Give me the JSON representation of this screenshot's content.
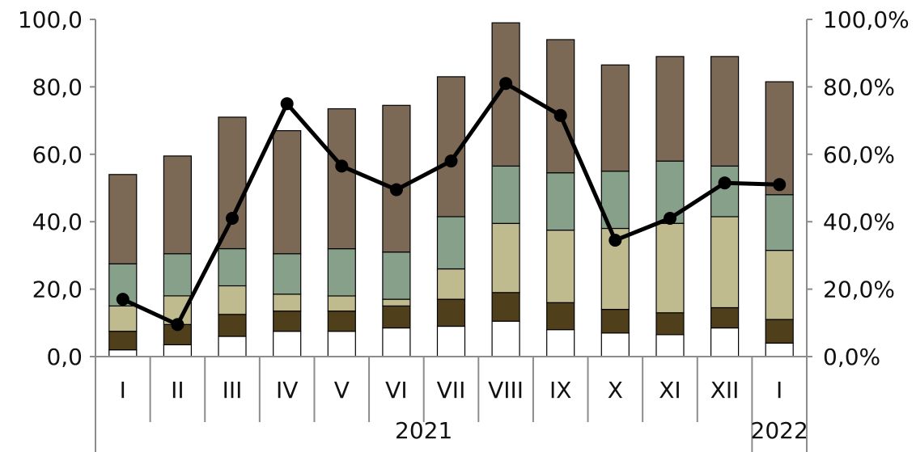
{
  "chart_data": {
    "type": "bar",
    "stacked": true,
    "categories": [
      "I",
      "II",
      "III",
      "IV",
      "V",
      "VI",
      "VII",
      "VIII",
      "IX",
      "X",
      "XI",
      "XII",
      "I"
    ],
    "years": [
      {
        "label": "2021",
        "span": [
          0,
          11
        ]
      },
      {
        "label": "2022",
        "span": [
          12,
          12
        ]
      }
    ],
    "series": [
      {
        "color": "#ffffff",
        "values": [
          2.0,
          3.5,
          6.0,
          7.5,
          7.5,
          8.5,
          9.0,
          10.5,
          8.0,
          7.0,
          6.5,
          8.5,
          4.0
        ]
      },
      {
        "color": "#4f3f1a",
        "values": [
          5.5,
          6.0,
          6.5,
          6.0,
          6.0,
          6.5,
          8.0,
          8.5,
          8.0,
          7.0,
          6.5,
          6.0,
          7.0
        ]
      },
      {
        "color": "#c0bb8f",
        "values": [
          7.5,
          8.5,
          8.5,
          5.0,
          4.5,
          2.0,
          9.0,
          20.5,
          21.5,
          24.0,
          26.5,
          27.0,
          20.5
        ]
      },
      {
        "color": "#87a08a",
        "values": [
          12.5,
          12.5,
          11.0,
          12.0,
          14.0,
          14.0,
          15.5,
          17.0,
          17.0,
          17.0,
          18.5,
          15.0,
          16.5
        ]
      },
      {
        "color": "#7b6855",
        "values": [
          26.5,
          29.0,
          39.0,
          36.5,
          41.5,
          43.5,
          41.5,
          42.5,
          39.5,
          31.5,
          31.0,
          32.5,
          33.5
        ]
      }
    ],
    "line_series": {
      "color": "#000000",
      "axis": "right",
      "values": [
        17.0,
        9.5,
        41.0,
        75.0,
        56.5,
        49.5,
        58.0,
        81.0,
        71.5,
        34.5,
        41.0,
        51.5,
        51.0
      ]
    },
    "y_left": {
      "ylim": [
        0,
        100
      ],
      "ticks": [
        "0,0",
        "20,0",
        "40,0",
        "60,0",
        "80,0",
        "100,0"
      ]
    },
    "y_right": {
      "ylim": [
        0,
        100
      ],
      "ticks": [
        "0,0%",
        "20,0%",
        "40,0%",
        "60,0%",
        "80,0%",
        "100,0%"
      ]
    },
    "grid": false,
    "legend": "none"
  }
}
